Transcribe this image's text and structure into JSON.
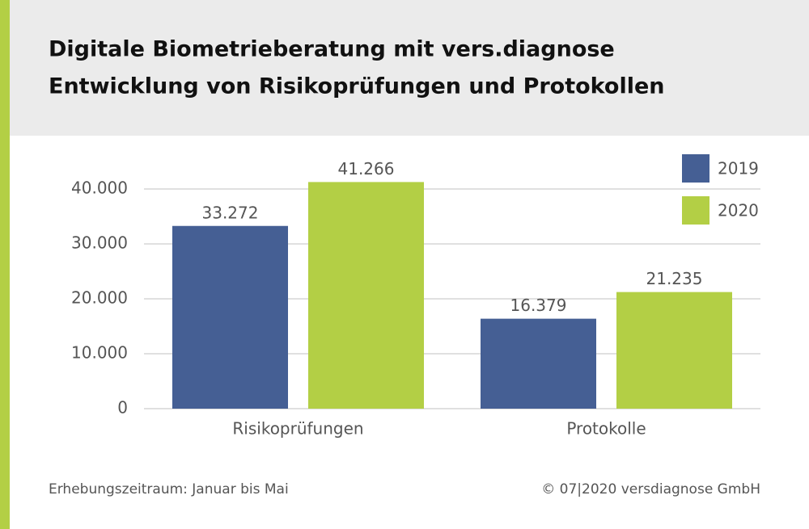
{
  "chart_data": {
    "type": "bar",
    "title": "Digitale Biometrieberatung mit vers.diagnose",
    "subtitle": "Entwicklung von Risikoprüfungen und Protokollen",
    "categories": [
      "Risikoprüfungen",
      "Protokolle"
    ],
    "series": [
      {
        "name": "2019",
        "color": "#455f94",
        "values": [
          33272,
          16379
        ],
        "value_labels": [
          "33.272",
          "16.379"
        ]
      },
      {
        "name": "2020",
        "color": "#b3cf45",
        "values": [
          41266,
          21235
        ],
        "value_labels": [
          "41.266",
          "21.235"
        ]
      }
    ],
    "ylim": [
      0,
      40000
    ],
    "yticks": [
      0,
      {
        "value": 10000,
        "label": "10.000"
      },
      {
        "value": 20000,
        "label": "20.000"
      },
      {
        "value": 30000,
        "label": "30.000"
      },
      {
        "value": 40000,
        "label": "40.000"
      }
    ],
    "grid": true,
    "legend": "top-right",
    "note": "Erhebungszeitraum: Januar bis Mai",
    "source": "© 07|2020 versdiagnose GmbH"
  }
}
